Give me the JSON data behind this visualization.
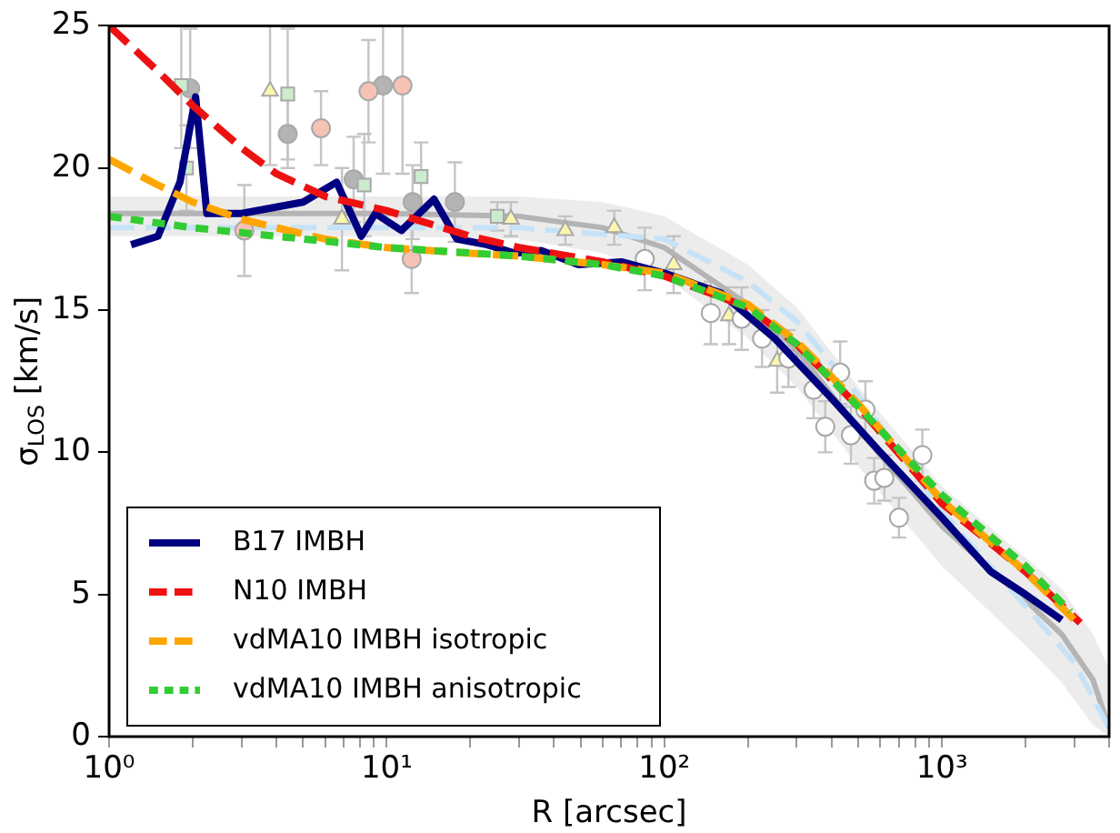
{
  "chart_data": {
    "type": "line",
    "xlabel": "R [arcsec]",
    "ylabel": "σ$_{LOS}$ [km/s]",
    "log": "x",
    "xlim": [
      1,
      4000
    ],
    "ylim": [
      0,
      25
    ],
    "xticks": [
      {
        "value": 1,
        "label": "10⁰"
      },
      {
        "value": 2,
        "label": null
      },
      {
        "value": 3,
        "label": null
      },
      {
        "value": 4,
        "label": null
      },
      {
        "value": 5,
        "label": null
      },
      {
        "value": 6,
        "label": null
      },
      {
        "value": 7,
        "label": null
      },
      {
        "value": 8,
        "label": null
      },
      {
        "value": 9,
        "label": null
      },
      {
        "value": 10,
        "label": "10¹"
      },
      {
        "value": 20,
        "label": null
      },
      {
        "value": 30,
        "label": null
      },
      {
        "value": 40,
        "label": null
      },
      {
        "value": 50,
        "label": null
      },
      {
        "value": 60,
        "label": null
      },
      {
        "value": 70,
        "label": null
      },
      {
        "value": 80,
        "label": null
      },
      {
        "value": 90,
        "label": null
      },
      {
        "value": 100,
        "label": "10²"
      },
      {
        "value": 200,
        "label": null
      },
      {
        "value": 300,
        "label": null
      },
      {
        "value": 400,
        "label": null
      },
      {
        "value": 500,
        "label": null
      },
      {
        "value": 600,
        "label": null
      },
      {
        "value": 700,
        "label": null
      },
      {
        "value": 800,
        "label": null
      },
      {
        "value": 900,
        "label": null
      },
      {
        "value": 1000,
        "label": "10³"
      },
      {
        "value": 2000,
        "label": null
      },
      {
        "value": 3000,
        "label": null
      },
      {
        "value": 4000,
        "label": null
      }
    ],
    "yticks": [
      0,
      5,
      10,
      15,
      20,
      25
    ],
    "grid": false,
    "legend": "bottom left",
    "series": [
      {
        "color": "#b4b4b4",
        "line_style": "solid",
        "x": [
          1,
          10,
          30,
          60,
          100,
          200,
          300,
          500,
          1000,
          2000,
          2700,
          3500,
          4000
        ],
        "values": [
          18.4,
          18.4,
          18.3,
          17.9,
          17.2,
          15.2,
          13.6,
          10.8,
          7.4,
          4.8,
          3.6,
          2.0,
          0.3
        ],
        "lower": [
          17.6,
          17.6,
          17.5,
          17.0,
          16.2,
          14.0,
          12.3,
          9.5,
          6.0,
          3.2,
          1.9,
          0.4,
          0
        ],
        "upper": [
          19.0,
          19.0,
          19.0,
          18.8,
          18.3,
          16.6,
          15.1,
          12.3,
          8.8,
          6.3,
          5.2,
          3.6,
          2.4
        ]
      },
      {
        "color": "#c6e2f7",
        "line_style": "dashed",
        "x": [
          1,
          30,
          100,
          200,
          300,
          500,
          1000,
          2000,
          3000,
          4000
        ],
        "values": [
          17.9,
          17.9,
          17.5,
          16.0,
          14.6,
          12.0,
          7.9,
          4.6,
          2.6,
          0.3
        ]
      },
      {
        "type": "scatter",
        "marker": "circle",
        "color": "#b4b4b4",
        "x": [
          1.96,
          4.4,
          7.6,
          9.7,
          12.4,
          17.6
        ],
        "values": [
          22.8,
          21.2,
          19.6,
          22.9,
          18.8,
          18.8
        ],
        "errors": [
          2.1,
          1.2,
          1.5,
          3.1,
          1.3,
          1.4
        ]
      },
      {
        "type": "scatter",
        "marker": "circle",
        "color": "#f5c2b4",
        "x": [
          3.07,
          5.8,
          8.6,
          11.4,
          12.3
        ],
        "values": [
          17.8,
          21.4,
          22.7,
          22.9,
          16.8
        ],
        "errors": [
          1.6,
          1.3,
          1.8,
          3.1,
          1.2
        ]
      },
      {
        "type": "scatter",
        "marker": "triangle",
        "color": "#fbf6ae",
        "x": [
          3.8,
          6.9,
          28,
          44,
          66,
          108,
          171,
          255
        ],
        "values": [
          22.7,
          18.2,
          18.2,
          17.8,
          17.9,
          16.6,
          14.8,
          13.2
        ],
        "errors": [
          2.6,
          1.8,
          0.6,
          0.5,
          0.6,
          1.0,
          1.0,
          1.1
        ]
      },
      {
        "type": "scatter",
        "marker": "square",
        "color": "#cdebcd",
        "x": [
          1.82,
          1.9,
          4.4,
          8.3,
          13.3,
          25
        ],
        "values": [
          22.9,
          20.0,
          22.6,
          19.4,
          19.7,
          18.3
        ],
        "errors": [
          2.2,
          1.5,
          2.3,
          1.8,
          1.2,
          0.5
        ]
      },
      {
        "type": "scatter",
        "marker": "circle",
        "color": "#ffffff",
        "x": [
          85,
          147,
          190,
          225,
          280,
          345,
          380,
          430,
          470,
          530,
          570,
          620,
          700,
          850
        ],
        "values": [
          16.8,
          14.9,
          14.7,
          14.0,
          13.3,
          12.2,
          10.9,
          12.8,
          10.6,
          11.5,
          9.0,
          9.1,
          7.7,
          9.9
        ],
        "errors": [
          1.1,
          1.1,
          1.1,
          1.0,
          1.0,
          1.0,
          0.9,
          1.1,
          1.0,
          1.0,
          0.8,
          0.8,
          0.7,
          0.9
        ]
      },
      {
        "name": "B17 IMBH",
        "color": "#000080",
        "line_style": "solid",
        "x": [
          1.2,
          1.5,
          1.8,
          2.05,
          2.25,
          3,
          5,
          6.6,
          8.1,
          9.1,
          11.3,
          14.8,
          17.9,
          23,
          29,
          36,
          49,
          70,
          100,
          160,
          250,
          400,
          600,
          1000,
          1500,
          2000,
          2700
        ],
        "values": [
          17.3,
          17.6,
          19.5,
          22.5,
          18.4,
          18.4,
          18.8,
          19.5,
          17.6,
          18.4,
          17.8,
          18.9,
          17.5,
          17.3,
          17.0,
          17.1,
          16.6,
          16.7,
          16.3,
          15.6,
          14.0,
          11.9,
          10.0,
          7.7,
          5.8,
          5.0,
          4.1
        ]
      },
      {
        "name": "N10 IMBH",
        "color": "#ee1111",
        "line_style": "dashed",
        "x": [
          1,
          1.5,
          2,
          3,
          4,
          6,
          10,
          20,
          30,
          60,
          100,
          200,
          300,
          500,
          1000,
          2000,
          3150
        ],
        "values": [
          25.0,
          23.4,
          22.2,
          20.7,
          19.8,
          19.0,
          18.5,
          17.6,
          17.2,
          16.7,
          16.2,
          15.1,
          13.8,
          11.6,
          8.2,
          5.8,
          4.0
        ]
      },
      {
        "name": "vdMA10 IMBH isotropic",
        "color": "#ffa500",
        "line_style": "dashed",
        "x": [
          1,
          1.5,
          2,
          3,
          4,
          6,
          10,
          20,
          30,
          60,
          100,
          200,
          300,
          500,
          1000,
          2000,
          3150
        ],
        "values": [
          20.3,
          19.4,
          18.8,
          18.2,
          17.9,
          17.5,
          17.2,
          17.0,
          16.9,
          16.6,
          16.3,
          15.2,
          13.9,
          11.7,
          8.3,
          5.8,
          3.9
        ]
      },
      {
        "name": "vdMA10 IMBH anisotropic",
        "color": "#33cc33",
        "line_style": "dotted",
        "x": [
          1,
          2,
          4,
          10,
          30,
          60,
          100,
          200,
          300,
          500,
          1000,
          2000,
          2900
        ],
        "values": [
          18.3,
          17.9,
          17.6,
          17.2,
          16.9,
          16.6,
          16.2,
          15.1,
          13.8,
          11.6,
          8.5,
          6.0,
          4.4
        ]
      }
    ]
  }
}
